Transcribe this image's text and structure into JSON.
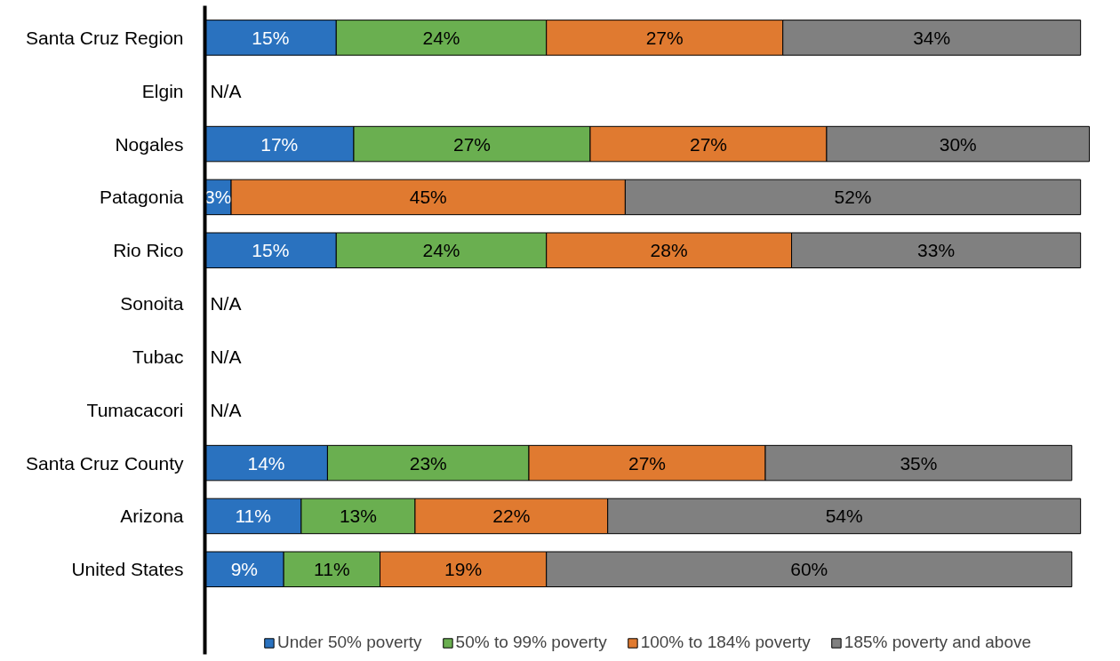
{
  "chart_data": {
    "type": "bar",
    "orientation": "horizontal",
    "stacked": true,
    "legend": "bottom",
    "grid": false,
    "categories": [
      "Santa Cruz Region",
      "Elgin",
      "Nogales",
      "Patagonia",
      "Rio Rico",
      "Sonoita",
      "Tubac",
      "Tumacacori",
      "Santa Cruz County",
      "Arizona",
      "United States"
    ],
    "series": [
      {
        "name": "Under 50% poverty",
        "color": "#2a72bf",
        "values": [
          15,
          null,
          17,
          3,
          15,
          null,
          null,
          null,
          14,
          11,
          9
        ],
        "value_labels": [
          "15%",
          null,
          "17%",
          "3%",
          "15%",
          null,
          null,
          null,
          "14%",
          "11%",
          "9%"
        ]
      },
      {
        "name": "50% to 99% poverty",
        "color": "#6aaf50",
        "values": [
          24,
          null,
          27,
          null,
          24,
          null,
          null,
          null,
          23,
          13,
          11
        ],
        "value_labels": [
          "24%",
          null,
          "27%",
          null,
          "24%",
          null,
          null,
          null,
          "23%",
          "13%",
          "11%"
        ]
      },
      {
        "name": "100% to 184% poverty",
        "color": "#e07a30",
        "values": [
          27,
          null,
          27,
          45,
          28,
          null,
          null,
          null,
          27,
          22,
          19
        ],
        "value_labels": [
          "27%",
          null,
          "27%",
          "45%",
          "28%",
          null,
          null,
          null,
          "27%",
          "22%",
          "19%"
        ]
      },
      {
        "name": "185% poverty and above",
        "color": "#808080",
        "values": [
          34,
          null,
          30,
          52,
          33,
          null,
          null,
          null,
          35,
          54,
          60
        ],
        "value_labels": [
          "34%",
          null,
          "30%",
          "52%",
          "33%",
          null,
          null,
          null,
          "35%",
          "54%",
          "60%"
        ]
      }
    ],
    "annotations": [
      "N/A",
      "N/A",
      "N/A",
      "N/A"
    ]
  }
}
